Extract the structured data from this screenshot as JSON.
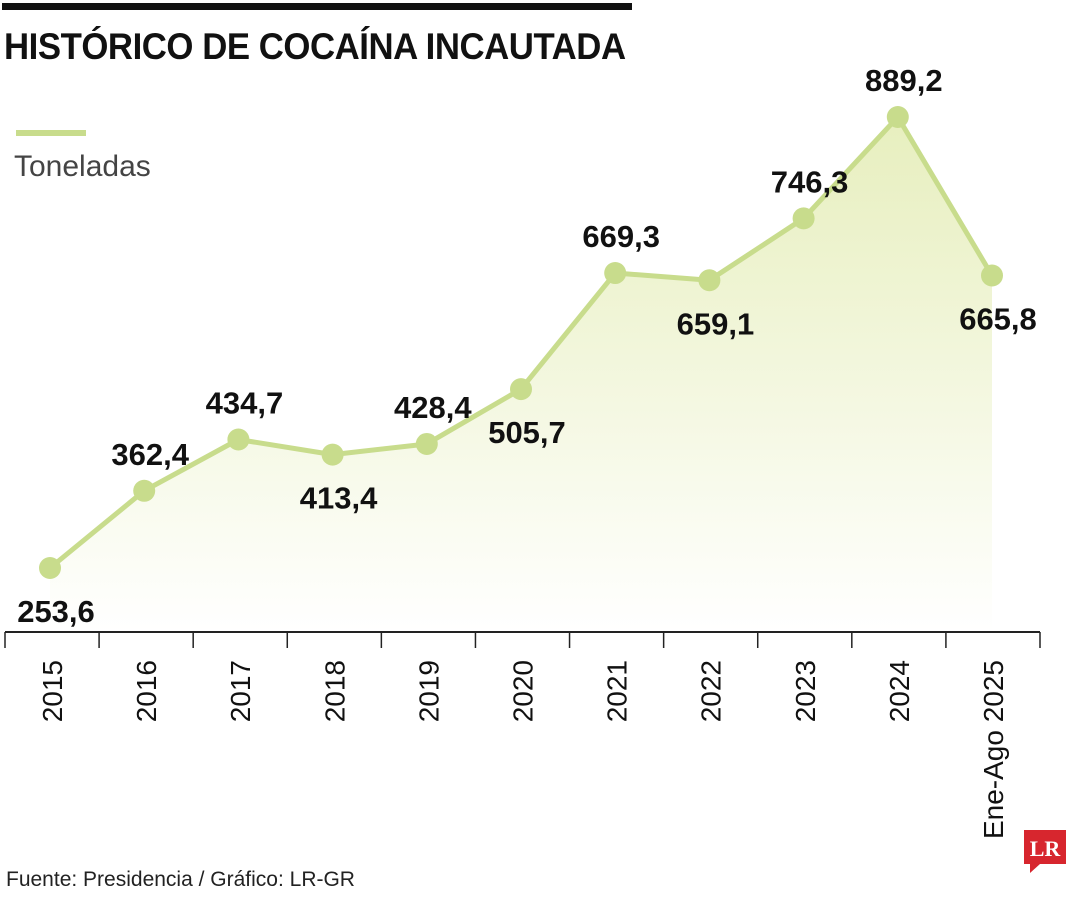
{
  "title": "HISTÓRICO DE COCAÍNA INCAUTADA",
  "legend": {
    "label": "Toneladas"
  },
  "source": "Fuente: Presidencia / Gráfico: LR-GR",
  "logo": {
    "text": "LR"
  },
  "colors": {
    "line": "#c8dc8c",
    "marker": "#c8dc8c",
    "fill": "#e9f0c4",
    "text": "#111111",
    "logo": "#d7262e"
  },
  "chart_data": {
    "type": "area",
    "title": "HISTÓRICO DE COCAÍNA INCAUTADA",
    "categories": [
      "2015",
      "2016",
      "2017",
      "2018",
      "2019",
      "2020",
      "2021",
      "2022",
      "2023",
      "2024",
      "Ene-Ago 2025"
    ],
    "series": [
      {
        "name": "Toneladas",
        "values": [
          253.6,
          362.4,
          434.7,
          413.4,
          428.4,
          505.7,
          669.3,
          659.1,
          746.3,
          889.2,
          665.8
        ],
        "labels": [
          "253,6",
          "362,4",
          "434,7",
          "413,4",
          "428,4",
          "505,7",
          "669,3",
          "659,1",
          "746,3",
          "889,2",
          "665,8"
        ]
      }
    ],
    "legend": "top-left",
    "grid": false
  }
}
